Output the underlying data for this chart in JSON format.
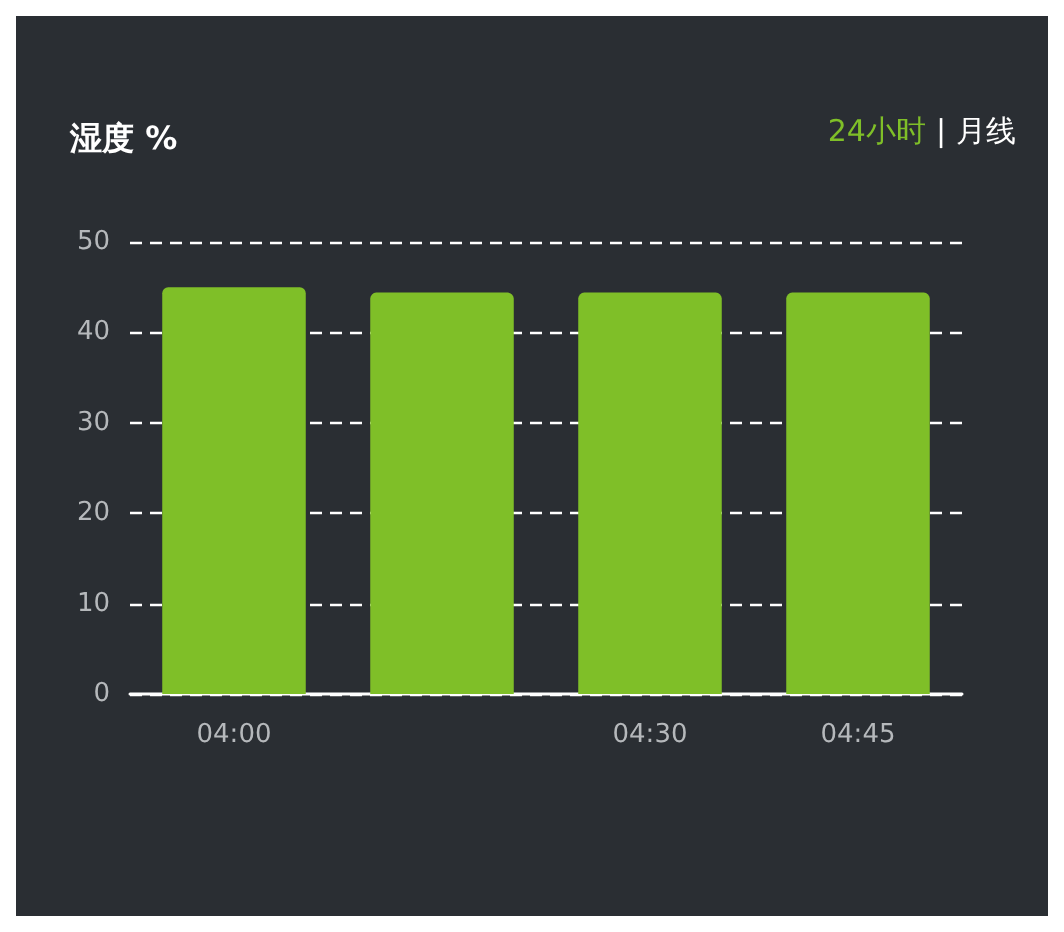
{
  "chart_data": {
    "type": "bar",
    "title": "湿度 %",
    "categories": [
      "04:00",
      null,
      "04:30",
      "04:45"
    ],
    "values": [
      45,
      44.4,
      44.4,
      44.4
    ],
    "color": "#7fbf28",
    "ylim": [
      0,
      50
    ],
    "yticks": [
      0,
      10,
      20,
      30,
      40,
      50
    ],
    "grid": true,
    "annotations": [
      "24小时",
      "|",
      "月线"
    ]
  }
}
